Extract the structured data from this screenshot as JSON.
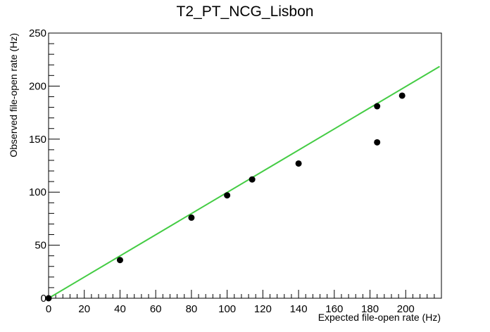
{
  "chart_data": {
    "type": "scatter",
    "title": "T2_PT_NCG_Lisbon",
    "xlabel": "Expected file-open rate (Hz)",
    "ylabel": "Observed file-open rate (Hz)",
    "xlim": [
      0,
      220
    ],
    "ylim": [
      0,
      250
    ],
    "x_ticks": [
      0,
      20,
      40,
      60,
      80,
      100,
      120,
      140,
      160,
      180,
      200
    ],
    "y_ticks": [
      0,
      50,
      100,
      150,
      200,
      250
    ],
    "grid": false,
    "legend": "none",
    "points": {
      "x": [
        0,
        40,
        80,
        100,
        114,
        140,
        184,
        184,
        198
      ],
      "y": [
        0,
        36,
        76,
        97,
        112,
        127,
        147,
        181,
        191
      ],
      "color": "#000000"
    },
    "fit_line": {
      "x": [
        0,
        219
      ],
      "y": [
        0,
        218.5
      ],
      "color": "#44cc44"
    }
  }
}
